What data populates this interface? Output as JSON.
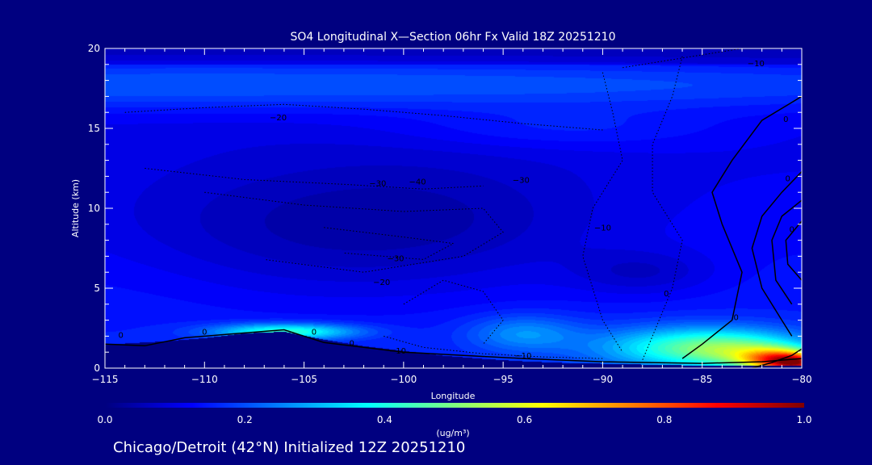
{
  "chart_data": {
    "type": "heatmap",
    "title": "SO4 Longitudinal X—Section 06hr  Fx Valid 18Z 20251210",
    "xlabel": "Longitude",
    "ylabel": "Altitude (km)",
    "xlim": [
      -115,
      -80
    ],
    "ylim": [
      0,
      20
    ],
    "x_ticks": [
      -115,
      -110,
      -105,
      -100,
      -95,
      -90,
      -85,
      -80
    ],
    "x_tick_labels": [
      "−115",
      "−110",
      "−105",
      "−100",
      "−95",
      "−90",
      "−85",
      "−80"
    ],
    "y_ticks": [
      0,
      5,
      10,
      15,
      20
    ],
    "y_tick_labels": [
      "0",
      "5",
      "10",
      "15",
      "20"
    ],
    "colorbar": {
      "label": "(ug/m³)",
      "range": [
        0.0,
        1.0
      ],
      "ticks": [
        0.0,
        0.2,
        0.4,
        0.6,
        0.8,
        1.0
      ],
      "tick_labels": [
        "0.0",
        "0.2",
        "0.4",
        "0.6",
        "0.8",
        "1.0"
      ],
      "colormap": "jet"
    },
    "field_blobs": [
      {
        "lon": -109,
        "alt": 17.8,
        "slon": 40,
        "salt": 1.2,
        "value": 0.12
      },
      {
        "lon": -92,
        "alt": 15.0,
        "slon": 6,
        "salt": 0.9,
        "value": 0.05
      },
      {
        "lon": -100,
        "alt": 9.0,
        "slon": 7,
        "salt": 3.0,
        "value": -0.08
      },
      {
        "lon": -110,
        "alt": 7.5,
        "slon": 6,
        "salt": 3.0,
        "value": -0.04
      },
      {
        "lon": -88,
        "alt": 6.0,
        "slon": 2.5,
        "salt": 1.0,
        "value": -0.06
      },
      {
        "lon": -112,
        "alt": 6.0,
        "slon": 5,
        "salt": 2.5,
        "value": 0.02
      },
      {
        "lon": -106,
        "alt": 2.3,
        "slon": 2.5,
        "salt": 0.35,
        "value": 0.28
      },
      {
        "lon": -94,
        "alt": 2.2,
        "slon": 2.0,
        "salt": 0.8,
        "value": 0.12
      },
      {
        "lon": -85,
        "alt": 1.3,
        "slon": 3.5,
        "salt": 0.9,
        "value": 0.3
      },
      {
        "lon": -83,
        "alt": 1.0,
        "slon": 2.0,
        "salt": 0.7,
        "value": 0.12
      },
      {
        "lon": -81,
        "alt": 0.5,
        "slon": 1.4,
        "salt": 0.5,
        "value": 0.55
      },
      {
        "lon": -80.2,
        "alt": 0.3,
        "slon": 0.8,
        "salt": 0.35,
        "value": 0.3
      }
    ],
    "terrain_profile": {
      "lon": [
        -115,
        -112,
        -110,
        -108,
        -106,
        -104,
        -102,
        -100,
        -98,
        -96,
        -94,
        -92,
        -90,
        -88,
        -86,
        -84,
        -82,
        -80
      ],
      "alt": [
        1.5,
        1.7,
        1.9,
        2.2,
        2.3,
        1.8,
        1.4,
        1.1,
        0.8,
        0.6,
        0.45,
        0.35,
        0.3,
        0.25,
        0.2,
        0.2,
        0.2,
        0.2
      ]
    },
    "contours": [
      {
        "style": "solid",
        "points": [
          [
            -115,
            1.5
          ],
          [
            -113,
            1.4
          ],
          [
            -111,
            1.9
          ],
          [
            -109,
            2.1
          ],
          [
            -106,
            2.4
          ],
          [
            -104,
            1.6
          ],
          [
            -102,
            1.3
          ],
          [
            -100,
            1.0
          ],
          [
            -97,
            0.8
          ],
          [
            -94,
            0.6
          ],
          [
            -90,
            0.4
          ],
          [
            -85,
            0.3
          ],
          [
            -82,
            0.4
          ],
          [
            -80,
            0.6
          ]
        ]
      },
      {
        "style": "solid",
        "points": [
          [
            -80,
            17
          ],
          [
            -82,
            15.5
          ],
          [
            -83.5,
            13
          ],
          [
            -84.5,
            11
          ],
          [
            -84,
            9
          ],
          [
            -83,
            6
          ],
          [
            -83.5,
            3
          ],
          [
            -85,
            1.5
          ],
          [
            -86,
            0.6
          ]
        ]
      },
      {
        "style": "solid",
        "points": [
          [
            -80,
            12.3
          ],
          [
            -81,
            11
          ],
          [
            -82,
            9.5
          ],
          [
            -82.5,
            7.5
          ],
          [
            -82,
            5
          ],
          [
            -81,
            3
          ],
          [
            -80.5,
            2
          ]
        ]
      },
      {
        "style": "solid",
        "points": [
          [
            -80,
            10.5
          ],
          [
            -81,
            9.5
          ],
          [
            -81.5,
            8
          ],
          [
            -81.3,
            5.5
          ],
          [
            -80.5,
            4
          ]
        ]
      },
      {
        "style": "solid",
        "points": [
          [
            -80,
            9.2
          ],
          [
            -80.8,
            8
          ],
          [
            -80.7,
            6.5
          ],
          [
            -80,
            5.5
          ]
        ]
      },
      {
        "style": "solid",
        "points": [
          [
            -80,
            1.2
          ],
          [
            -80.5,
            0.8
          ],
          [
            -81.5,
            0.35
          ],
          [
            -82.5,
            0
          ]
        ]
      },
      {
        "style": "dotted",
        "points": [
          [
            -114,
            16
          ],
          [
            -110,
            16.3
          ],
          [
            -106,
            16.5
          ],
          [
            -102,
            16.2
          ],
          [
            -98,
            15.8
          ],
          [
            -94,
            15.3
          ],
          [
            -90,
            14.9
          ]
        ]
      },
      {
        "style": "dotted",
        "points": [
          [
            -113,
            12.5
          ],
          [
            -108,
            11.8
          ],
          [
            -103,
            11.5
          ],
          [
            -99,
            11.2
          ],
          [
            -96,
            11.4
          ]
        ]
      },
      {
        "style": "dotted",
        "points": [
          [
            -110,
            11
          ],
          [
            -105,
            10.2
          ],
          [
            -100,
            9.8
          ],
          [
            -96,
            10.0
          ],
          [
            -95,
            8.5
          ],
          [
            -97,
            7
          ],
          [
            -102,
            6
          ],
          [
            -107,
            6.8
          ]
        ]
      },
      {
        "style": "dotted",
        "points": [
          [
            -104,
            8.8
          ],
          [
            -100,
            8.2
          ],
          [
            -97.5,
            7.8
          ],
          [
            -99,
            6.8
          ],
          [
            -103,
            7.2
          ]
        ]
      },
      {
        "style": "dotted",
        "points": [
          [
            -100,
            4.0
          ],
          [
            -98,
            5.5
          ],
          [
            -96,
            4.8
          ],
          [
            -95,
            3.0
          ],
          [
            -96,
            1.5
          ]
        ]
      },
      {
        "style": "dotted",
        "points": [
          [
            -90,
            18.5
          ],
          [
            -89.5,
            16
          ],
          [
            -89,
            13
          ],
          [
            -90.5,
            10
          ],
          [
            -91,
            7
          ],
          [
            -90,
            3
          ],
          [
            -89,
            1
          ]
        ]
      },
      {
        "style": "dotted",
        "points": [
          [
            -86,
            19.5
          ],
          [
            -86.5,
            17
          ],
          [
            -87.5,
            14
          ],
          [
            -87.5,
            11
          ],
          [
            -86,
            8
          ],
          [
            -86.5,
            5
          ],
          [
            -87.5,
            2
          ],
          [
            -88,
            0.5
          ]
        ]
      },
      {
        "style": "dotted",
        "points": [
          [
            -89,
            18.8
          ],
          [
            -85,
            19.6
          ],
          [
            -83,
            20
          ]
        ]
      },
      {
        "style": "dotted",
        "points": [
          [
            -101,
            2.0
          ],
          [
            -99,
            1.3
          ],
          [
            -96,
            0.9
          ],
          [
            -93,
            0.7
          ],
          [
            -90,
            0.6
          ]
        ]
      }
    ],
    "contour_labels": [
      {
        "text": "−20",
        "lon": -106.3,
        "alt": 15.5
      },
      {
        "text": "−10",
        "lon": -82.3,
        "alt": 18.9
      },
      {
        "text": "0",
        "lon": -80.8,
        "alt": 15.4
      },
      {
        "text": "−30",
        "lon": -94.1,
        "alt": 11.6
      },
      {
        "text": "−40",
        "lon": -99.3,
        "alt": 11.5
      },
      {
        "text": "−30",
        "lon": -101.3,
        "alt": 11.4
      },
      {
        "text": "−30",
        "lon": -100.4,
        "alt": 6.7
      },
      {
        "text": "−20",
        "lon": -101.1,
        "alt": 5.2
      },
      {
        "text": "−10",
        "lon": -100.3,
        "alt": 0.9
      },
      {
        "text": "−10",
        "lon": -94.0,
        "alt": 0.6
      },
      {
        "text": "−10",
        "lon": -90.0,
        "alt": 8.6
      },
      {
        "text": "0",
        "lon": -86.8,
        "alt": 4.5
      },
      {
        "text": "0",
        "lon": -80.7,
        "alt": 11.7
      },
      {
        "text": "0",
        "lon": -80.5,
        "alt": 8.5
      },
      {
        "text": "0",
        "lon": -114.2,
        "alt": 1.9
      },
      {
        "text": "0",
        "lon": -110.0,
        "alt": 2.1
      },
      {
        "text": "0",
        "lon": -104.5,
        "alt": 2.1
      },
      {
        "text": "0",
        "lon": -102.6,
        "alt": 1.4
      },
      {
        "text": "0",
        "lon": -83.3,
        "alt": 3.0
      }
    ]
  },
  "caption": "Chicago/Detroit (42°N) Initialized 12Z 20251210",
  "colors": {
    "background": "#000080",
    "axes": "#ffffff",
    "contour": "#000000"
  }
}
